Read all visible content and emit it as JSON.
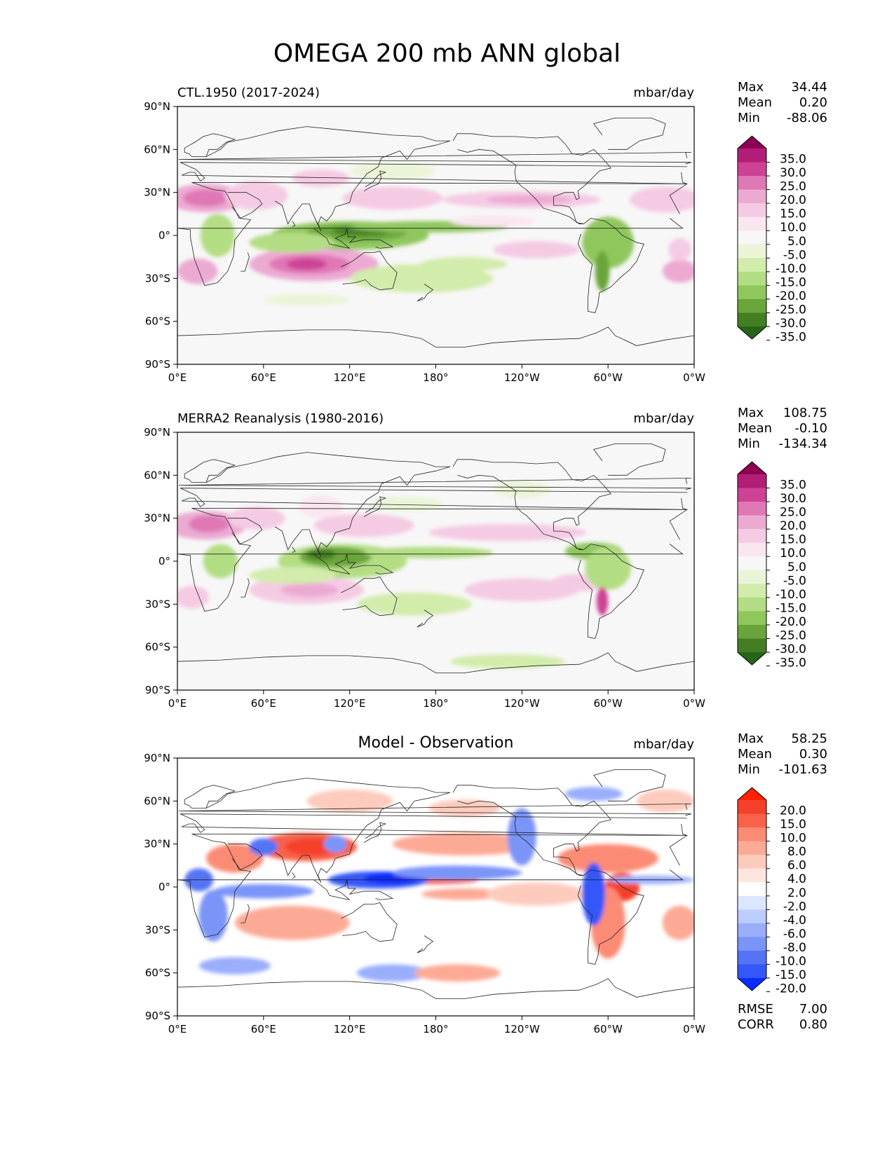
{
  "suptitle": "OMEGA 200 mb ANN global",
  "xticks": [
    "0°E",
    "60°E",
    "120°E",
    "180°",
    "120°W",
    "60°W",
    "0°W"
  ],
  "yticks": [
    "90°N",
    "60°N",
    "30°N",
    "0°",
    "30°S",
    "60°S",
    "90°S"
  ],
  "panels": [
    {
      "title_left": "CTL.1950 (2017-2024)",
      "title_center": "",
      "units": "mbar/day",
      "stats": [
        {
          "label": "Max",
          "value": "34.44"
        },
        {
          "label": "Mean",
          "value": "0.20"
        },
        {
          "label": "Min",
          "value": "-88.06"
        }
      ],
      "extra_stats": [],
      "colorbar": {
        "labels": [
          "35.0",
          "30.0",
          "25.0",
          "20.0",
          "15.0",
          "10.0",
          "5.0",
          "-5.0",
          "-10.0",
          "-15.0",
          "-20.0",
          "-25.0",
          "-30.0",
          "-35.0"
        ],
        "colors": [
          "#8e0152",
          "#b21e77",
          "#cd4295",
          "#df78b5",
          "#ecaad2",
          "#f5cbe4",
          "#fae6f1",
          "#f7f7f7",
          "#eaf5d8",
          "#d2ecac",
          "#b3dd83",
          "#8fc75d",
          "#6aa53b",
          "#437e23",
          "#276419"
        ]
      }
    },
    {
      "title_left": "MERRA2 Reanalysis (1980-2016)",
      "title_center": "",
      "units": "mbar/day",
      "stats": [
        {
          "label": "Max",
          "value": "108.75"
        },
        {
          "label": "Mean",
          "value": "-0.10"
        },
        {
          "label": "Min",
          "value": "-134.34"
        }
      ],
      "extra_stats": [],
      "colorbar": {
        "labels": [
          "35.0",
          "30.0",
          "25.0",
          "20.0",
          "15.0",
          "10.0",
          "5.0",
          "-5.0",
          "-10.0",
          "-15.0",
          "-20.0",
          "-25.0",
          "-30.0",
          "-35.0"
        ],
        "colors": [
          "#8e0152",
          "#b21e77",
          "#cd4295",
          "#df78b5",
          "#ecaad2",
          "#f5cbe4",
          "#fae6f1",
          "#f7f7f7",
          "#eaf5d8",
          "#d2ecac",
          "#b3dd83",
          "#8fc75d",
          "#6aa53b",
          "#437e23",
          "#276419"
        ]
      }
    },
    {
      "title_left": "",
      "title_center": "Model - Observation",
      "units": "mbar/day",
      "stats": [
        {
          "label": "Max",
          "value": "58.25"
        },
        {
          "label": "Mean",
          "value": "0.30"
        },
        {
          "label": "Min",
          "value": "-101.63"
        }
      ],
      "extra_stats": [
        {
          "label": "RMSE",
          "value": "7.00"
        },
        {
          "label": "CORR",
          "value": "0.80"
        }
      ],
      "colorbar": {
        "labels": [
          "20.0",
          "15.0",
          "10.0",
          "8.0",
          "6.0",
          "4.0",
          "2.0",
          "-2.0",
          "-4.0",
          "-6.0",
          "-8.0",
          "-10.0",
          "-15.0",
          "-20.0"
        ],
        "colors": [
          "#ff2200",
          "#f5402a",
          "#f8624a",
          "#fb8b74",
          "#fcaa96",
          "#fdcbbd",
          "#fee6de",
          "#ffffff",
          "#dde6ff",
          "#bccdff",
          "#9aaefc",
          "#7a94f8",
          "#5573f5",
          "#3457f8",
          "#0a2cff"
        ]
      }
    }
  ]
}
